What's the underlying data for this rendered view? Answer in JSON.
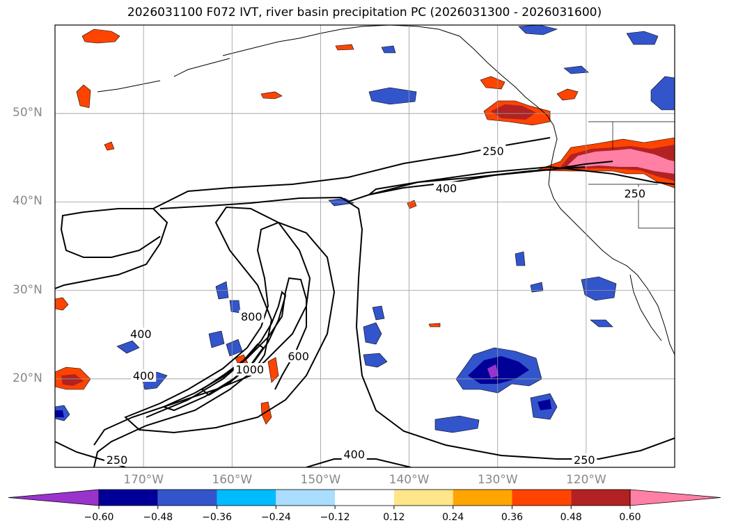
{
  "title": "2026031100 F072 IVT, river basin precipitation PC (2026031300 - 2026031600)",
  "map": {
    "lon_range": [
      -180,
      -110
    ],
    "lat_range": [
      10,
      60
    ],
    "lat_labels": [
      {
        "value": 50,
        "label": "50°N"
      },
      {
        "value": 40,
        "label": "40°N"
      },
      {
        "value": 30,
        "label": "30°N"
      },
      {
        "value": 20,
        "label": "20°N"
      }
    ],
    "lon_labels": [
      {
        "value": -170,
        "label": "170°W"
      },
      {
        "value": -160,
        "label": "160°W"
      },
      {
        "value": -150,
        "label": "150°W"
      },
      {
        "value": -140,
        "label": "140°W"
      },
      {
        "value": -130,
        "label": "130°W"
      },
      {
        "value": -120,
        "label": "120°W"
      }
    ],
    "grid": true
  },
  "ivt_contour_labels": [
    {
      "text": "250",
      "lon": -130.5,
      "lat": 45.7
    },
    {
      "text": "400",
      "lon": -135.8,
      "lat": 41.5
    },
    {
      "text": "250",
      "lon": -114.5,
      "lat": 40.9
    },
    {
      "text": "400",
      "lon": -170.3,
      "lat": 25.0
    },
    {
      "text": "400",
      "lon": -170.0,
      "lat": 20.3
    },
    {
      "text": "800",
      "lon": -157.8,
      "lat": 27.0
    },
    {
      "text": "1000",
      "lon": -158.0,
      "lat": 21.0
    },
    {
      "text": "600",
      "lon": -152.5,
      "lat": 22.5
    },
    {
      "text": "400",
      "lon": -146.2,
      "lat": 11.4
    },
    {
      "text": "250",
      "lon": -173.0,
      "lat": 10.8
    },
    {
      "text": "250",
      "lon": -120.2,
      "lat": 10.8
    }
  ],
  "colorbar": {
    "colors": [
      "#9933cc",
      "#000099",
      "#3355cc",
      "#00bbff",
      "#aaddff",
      "#ffffff",
      "#ffe68a",
      "#ffa500",
      "#ff4400",
      "#b22222",
      "#ff7fa5"
    ],
    "tick_labels": [
      "−0.60",
      "−0.48",
      "−0.36",
      "−0.24",
      "−0.12",
      "0.12",
      "0.24",
      "0.36",
      "0.48",
      "0.60"
    ]
  }
}
